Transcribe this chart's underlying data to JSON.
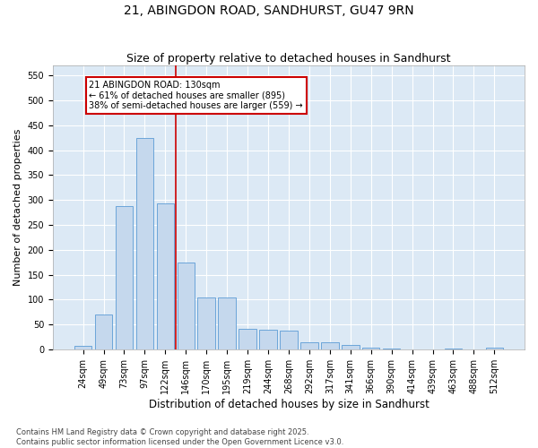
{
  "title": "21, ABINGDON ROAD, SANDHURST, GU47 9RN",
  "subtitle": "Size of property relative to detached houses in Sandhurst",
  "xlabel": "Distribution of detached houses by size in Sandhurst",
  "ylabel": "Number of detached properties",
  "categories": [
    "24sqm",
    "49sqm",
    "73sqm",
    "97sqm",
    "122sqm",
    "146sqm",
    "170sqm",
    "195sqm",
    "219sqm",
    "244sqm",
    "268sqm",
    "292sqm",
    "317sqm",
    "341sqm",
    "366sqm",
    "390sqm",
    "414sqm",
    "439sqm",
    "463sqm",
    "488sqm",
    "512sqm"
  ],
  "values": [
    7,
    70,
    288,
    425,
    293,
    175,
    105,
    105,
    42,
    40,
    38,
    14,
    15,
    8,
    4,
    2,
    0,
    0,
    2,
    0,
    3
  ],
  "bar_color": "#c5d8ed",
  "bar_edge_color": "#5b9bd5",
  "background_color": "#dce9f5",
  "grid_color": "#ffffff",
  "fig_background": "#ffffff",
  "annotation_text": "21 ABINGDON ROAD: 130sqm\n← 61% of detached houses are smaller (895)\n38% of semi-detached houses are larger (559) →",
  "annotation_box_facecolor": "#ffffff",
  "annotation_box_edgecolor": "#cc0000",
  "vline_color": "#cc0000",
  "vline_x": 4.5,
  "ylim": [
    0,
    570
  ],
  "yticks": [
    0,
    50,
    100,
    150,
    200,
    250,
    300,
    350,
    400,
    450,
    500,
    550
  ],
  "footnote": "Contains HM Land Registry data © Crown copyright and database right 2025.\nContains public sector information licensed under the Open Government Licence v3.0.",
  "title_fontsize": 10,
  "subtitle_fontsize": 9,
  "xlabel_fontsize": 8.5,
  "ylabel_fontsize": 8,
  "tick_fontsize": 7,
  "annotation_fontsize": 7,
  "footnote_fontsize": 6
}
